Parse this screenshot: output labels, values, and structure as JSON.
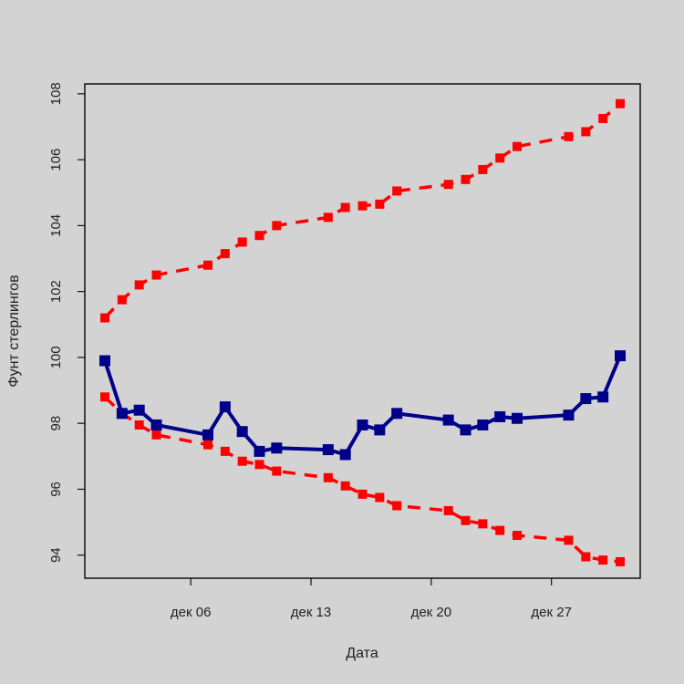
{
  "chart_data": {
    "type": "line",
    "title": "",
    "xlabel": "Дата",
    "ylabel": "Фунт стерлингов",
    "x_ticks": [
      "дек 06",
      "дек 13",
      "дек 20",
      "дек 27"
    ],
    "y_ticks": [
      "94",
      "96",
      "98",
      "100",
      "102",
      "104",
      "106",
      "108"
    ],
    "ylim": [
      93.3,
      108.3
    ],
    "grid": false,
    "legend": "none",
    "x": [
      "2021-12-01",
      "2021-12-02",
      "2021-12-03",
      "2021-12-04",
      "2021-12-07",
      "2021-12-08",
      "2021-12-09",
      "2021-12-10",
      "2021-12-11",
      "2021-12-14",
      "2021-12-15",
      "2021-12-16",
      "2021-12-17",
      "2021-12-18",
      "2021-12-21",
      "2021-12-22",
      "2021-12-23",
      "2021-12-24",
      "2021-12-25",
      "2021-12-28",
      "2021-12-29",
      "2021-12-30",
      "2021-12-31"
    ],
    "series": [
      {
        "color": "#00008b",
        "style": "solid",
        "values": [
          99.9,
          98.3,
          98.4,
          97.95,
          97.65,
          98.5,
          97.75,
          97.15,
          97.25,
          97.2,
          97.05,
          97.95,
          97.8,
          98.3,
          98.1,
          97.8,
          97.95,
          98.2,
          98.15,
          98.25,
          98.75,
          98.8,
          100.05
        ]
      },
      {
        "color": "#ff0000",
        "style": "dashed",
        "values": [
          101.2,
          101.75,
          102.2,
          102.5,
          102.8,
          103.15,
          103.5,
          103.7,
          104.0,
          104.25,
          104.55,
          104.6,
          104.65,
          105.05,
          105.25,
          105.4,
          105.7,
          106.05,
          106.4,
          106.7,
          106.85,
          107.25,
          107.7
        ]
      },
      {
        "color": "#ff0000",
        "style": "dashed",
        "values": [
          98.8,
          98.3,
          97.95,
          97.65,
          97.35,
          97.15,
          96.85,
          96.75,
          96.55,
          96.35,
          96.1,
          95.85,
          95.75,
          95.5,
          95.35,
          95.05,
          94.95,
          94.75,
          94.6,
          94.45,
          93.95,
          93.85,
          93.8
        ]
      }
    ]
  }
}
